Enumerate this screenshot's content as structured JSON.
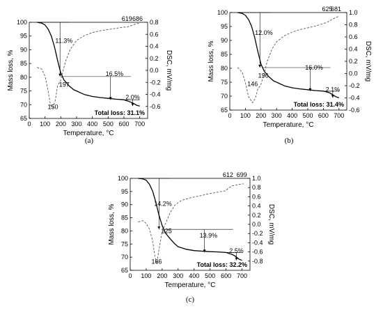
{
  "chart_data": [
    {
      "type": "line",
      "panel_label": "(a)",
      "xlabel": "Temperature, °C",
      "ylabel_left": "Mass loss, %",
      "ylabel_right": "DSC, mV/mg",
      "xlim": [
        0,
        750
      ],
      "xticks": [
        0,
        100,
        200,
        300,
        400,
        500,
        600,
        700
      ],
      "ylim_left": [
        65,
        100
      ],
      "yticks_left": [
        65,
        70,
        75,
        80,
        85,
        90,
        95,
        100
      ],
      "ylim_right": [
        -0.8,
        0.8
      ],
      "yticks_right": [
        0.8,
        0.6,
        0.4,
        0.2,
        0.0,
        -0.2,
        -0.4,
        -0.6
      ],
      "series": [
        {
          "style": "solid",
          "axis": "left",
          "x": [
            50,
            80,
            100,
            120,
            140,
            160,
            180,
            200,
            220,
            250,
            280,
            300,
            350,
            400,
            450,
            500,
            550,
            600,
            640,
            660,
            680,
            700
          ],
          "y": [
            100,
            99.7,
            99.0,
            97.5,
            95.0,
            91.0,
            86.0,
            81.5,
            79.0,
            77.0,
            75.5,
            75.0,
            73.7,
            73.0,
            72.6,
            72.3,
            72.0,
            71.8,
            71.0,
            70.5,
            69.8,
            69.5
          ]
        },
        {
          "style": "dashed",
          "axis": "right",
          "x": [
            50,
            80,
            100,
            120,
            135,
            150,
            165,
            180,
            197,
            210,
            230,
            260,
            300,
            350,
            400,
            450,
            500,
            550,
            600,
            619,
            640,
            660,
            686,
            700
          ],
          "y": [
            0.05,
            0.02,
            -0.1,
            -0.35,
            -0.58,
            -0.62,
            -0.5,
            -0.25,
            -0.18,
            -0.05,
            0.15,
            0.35,
            0.5,
            0.58,
            0.63,
            0.66,
            0.68,
            0.7,
            0.72,
            0.72,
            0.74,
            0.76,
            0.78,
            0.78
          ]
        }
      ],
      "annotations": [
        {
          "text": "11.3%",
          "x": 220,
          "y": 92.5
        },
        {
          "text": "16.5%",
          "x": 540,
          "y": 80.5
        },
        {
          "text": "2.0%",
          "x": 655,
          "y": 72.0
        },
        {
          "text": "197",
          "x": 222,
          "y": 76.5
        },
        {
          "text": "150",
          "x": 150,
          "y": 68.4
        },
        {
          "text": "619",
          "x": 619,
          "y": 103.0
        },
        {
          "text": "686",
          "x": 686,
          "y": 103.0
        }
      ],
      "total_loss": "Total loss: 31.1%"
    },
    {
      "type": "line",
      "panel_label": "(b)",
      "xlabel": "Temperature, °C",
      "ylabel_left": "Mass loss, %",
      "ylabel_right": "DSC, mV/mg",
      "xlim": [
        0,
        750
      ],
      "xticks": [
        0,
        100,
        200,
        300,
        400,
        500,
        600,
        700
      ],
      "ylim_left": [
        65,
        100
      ],
      "yticks_left": [
        65,
        70,
        75,
        80,
        85,
        90,
        95,
        100
      ],
      "ylim_right": [
        -0.6,
        1.0
      ],
      "yticks_right": [
        1.0,
        0.8,
        0.6,
        0.4,
        0.2,
        0.0,
        -0.2,
        -0.4,
        -0.6
      ],
      "series": [
        {
          "style": "solid",
          "axis": "left",
          "x": [
            50,
            80,
            100,
            120,
            140,
            160,
            180,
            200,
            220,
            250,
            280,
            300,
            350,
            400,
            450,
            500,
            550,
            600,
            640,
            660,
            680,
            700
          ],
          "y": [
            100,
            99.7,
            99.0,
            97.5,
            95.0,
            91.0,
            86.0,
            81.5,
            79.0,
            77.0,
            75.5,
            75.0,
            73.7,
            73.0,
            72.6,
            72.3,
            72.0,
            71.8,
            71.2,
            70.5,
            69.8,
            69.4
          ]
        },
        {
          "style": "dashed",
          "axis": "right",
          "x": [
            50,
            80,
            100,
            120,
            146,
            165,
            180,
            196,
            215,
            240,
            270,
            300,
            350,
            400,
            450,
            500,
            550,
            600,
            625,
            650,
            681,
            700
          ],
          "y": [
            0.1,
            0.02,
            -0.15,
            -0.38,
            -0.48,
            -0.4,
            -0.25,
            -0.2,
            -0.05,
            0.2,
            0.4,
            0.52,
            0.62,
            0.68,
            0.72,
            0.75,
            0.78,
            0.82,
            0.84,
            0.88,
            0.92,
            0.94
          ]
        }
      ],
      "annotations": [
        {
          "text": "12.0%",
          "x": 218,
          "y": 92.0
        },
        {
          "text": "16.0%",
          "x": 540,
          "y": 79.5
        },
        {
          "text": "2.1%",
          "x": 660,
          "y": 71.6
        },
        {
          "text": "196",
          "x": 215,
          "y": 76.6
        },
        {
          "text": "146",
          "x": 146,
          "y": 73.6
        },
        {
          "text": "625",
          "x": 625,
          "y": 101.0
        },
        {
          "text": "681",
          "x": 681,
          "y": 102.5
        }
      ],
      "total_loss": "Total loss: 31.4%"
    },
    {
      "type": "line",
      "panel_label": "(c)",
      "xlabel": "Temperature, °C",
      "ylabel_left": "Mass loss, %",
      "ylabel_right": "DSC, mV/mg",
      "xlim": [
        0,
        750
      ],
      "xticks": [
        0,
        100,
        200,
        300,
        400,
        500,
        600,
        700
      ],
      "ylim_left": [
        65,
        100
      ],
      "yticks_left": [
        65,
        70,
        75,
        80,
        85,
        90,
        95,
        100
      ],
      "ylim_right": [
        -1.0,
        1.0
      ],
      "yticks_right": [
        1.0,
        0.8,
        0.6,
        0.4,
        0.2,
        0.0,
        -0.2,
        -0.4,
        -0.6,
        -0.8
      ],
      "series": [
        {
          "style": "solid",
          "axis": "left",
          "x": [
            50,
            80,
            100,
            120,
            140,
            160,
            180,
            200,
            220,
            250,
            280,
            300,
            350,
            400,
            450,
            500,
            550,
            600,
            640,
            660,
            680,
            700
          ],
          "y": [
            100,
            99.8,
            99.3,
            97.8,
            95.2,
            91.0,
            86.0,
            82.0,
            79.2,
            77.0,
            75.0,
            74.0,
            73.0,
            72.5,
            72.3,
            72.1,
            72.0,
            71.8,
            71.0,
            70.3,
            69.3,
            68.8
          ]
        },
        {
          "style": "dashed",
          "axis": "right",
          "x": [
            50,
            80,
            100,
            120,
            140,
            155,
            166,
            180,
            200,
            225,
            250,
            280,
            320,
            380,
            450,
            500,
            550,
            600,
            612,
            640,
            670,
            699,
            710
          ],
          "y": [
            0.05,
            0.08,
            0.02,
            -0.1,
            -0.35,
            -0.7,
            -0.85,
            -0.55,
            -0.15,
            0.05,
            0.25,
            0.42,
            0.52,
            0.58,
            0.63,
            0.67,
            0.7,
            0.73,
            0.78,
            0.84,
            0.86,
            0.88,
            0.88
          ]
        }
      ],
      "annotations": [
        {
          "text": "14.2%",
          "x": 205,
          "y": 89.5
        },
        {
          "text": "13.9%",
          "x": 490,
          "y": 77.5
        },
        {
          "text": "2.5%",
          "x": 665,
          "y": 71.6
        },
        {
          "text": "225",
          "x": 228,
          "y": 79.2
        },
        {
          "text": "166",
          "x": 166,
          "y": 67.5
        },
        {
          "text": "612",
          "x": 612,
          "y": 102.0
        },
        {
          "text": "699",
          "x": 699,
          "y": 102.0
        }
      ],
      "total_loss": "Total loss: 32.2%"
    }
  ]
}
